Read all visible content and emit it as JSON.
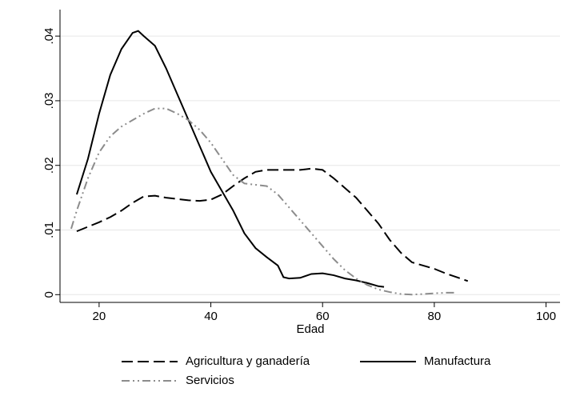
{
  "chart_data": {
    "type": "line",
    "x_label": "Edad",
    "xlim": [
      13,
      102.5
    ],
    "xticks": [
      20,
      40,
      60,
      80,
      100
    ],
    "ylim": [
      -0.0012,
      0.0441
    ],
    "yticks": [
      0,
      {
        "value": 0.01,
        "label": ".01"
      },
      {
        "value": 0.02,
        "label": ".02"
      },
      {
        "value": 0.03,
        "label": ".03"
      },
      {
        "value": 0.04,
        "label": ".04"
      }
    ],
    "grid": true,
    "legend": "bottom",
    "series": [
      {
        "name": "Agricultura y ganadería",
        "color": "#000000",
        "dash": "dashed",
        "x": [
          16,
          18,
          20,
          22,
          24,
          26,
          28,
          30,
          32,
          34,
          36,
          38,
          40,
          42,
          44,
          46,
          48,
          50,
          52,
          54,
          56,
          58,
          60,
          62,
          64,
          66,
          68,
          70,
          72,
          74,
          76,
          78,
          80,
          82,
          84,
          86
        ],
        "values": [
          0.0098,
          0.0105,
          0.0112,
          0.012,
          0.013,
          0.0142,
          0.0152,
          0.0153,
          0.015,
          0.0148,
          0.0146,
          0.0145,
          0.0147,
          0.0155,
          0.0168,
          0.018,
          0.019,
          0.0193,
          0.0193,
          0.0193,
          0.0193,
          0.0195,
          0.0193,
          0.018,
          0.0165,
          0.015,
          0.013,
          0.011,
          0.0085,
          0.0065,
          0.005,
          0.0045,
          0.004,
          0.0033,
          0.0027,
          0.0021
        ]
      },
      {
        "name": "Manufactura",
        "color": "#000000",
        "dash": "solid",
        "x": [
          16,
          18,
          20,
          22,
          24,
          26,
          27,
          28,
          30,
          32,
          34,
          36,
          38,
          40,
          42,
          44,
          46,
          48,
          50,
          52,
          53,
          54,
          56,
          58,
          60,
          62,
          64,
          66,
          68,
          70,
          71
        ],
        "values": [
          0.0155,
          0.021,
          0.028,
          0.034,
          0.038,
          0.0405,
          0.0408,
          0.04,
          0.0385,
          0.035,
          0.031,
          0.027,
          0.023,
          0.019,
          0.016,
          0.013,
          0.0095,
          0.0072,
          0.0058,
          0.0045,
          0.0027,
          0.0025,
          0.0026,
          0.0032,
          0.0033,
          0.003,
          0.0025,
          0.0022,
          0.0018,
          0.0013,
          0.0012
        ]
      },
      {
        "name": "Servicios",
        "color": "#8c8c8c",
        "dash": "dashdot",
        "x": [
          15,
          16,
          18,
          20,
          22,
          24,
          26,
          28,
          30,
          32,
          34,
          36,
          38,
          40,
          42,
          44,
          46,
          48,
          50,
          52,
          54,
          56,
          58,
          60,
          62,
          64,
          66,
          68,
          70,
          72,
          74,
          76,
          78,
          80,
          82,
          84
        ],
        "values": [
          0.0102,
          0.013,
          0.018,
          0.022,
          0.0245,
          0.026,
          0.027,
          0.028,
          0.0288,
          0.0288,
          0.028,
          0.027,
          0.0255,
          0.0235,
          0.021,
          0.0185,
          0.0172,
          0.017,
          0.0168,
          0.0155,
          0.0135,
          0.0115,
          0.0095,
          0.0075,
          0.0055,
          0.0038,
          0.0025,
          0.0015,
          0.0008,
          0.0004,
          0.0001,
          0,
          0.0001,
          0.0002,
          0.0003,
          0.0003
        ]
      }
    ]
  }
}
